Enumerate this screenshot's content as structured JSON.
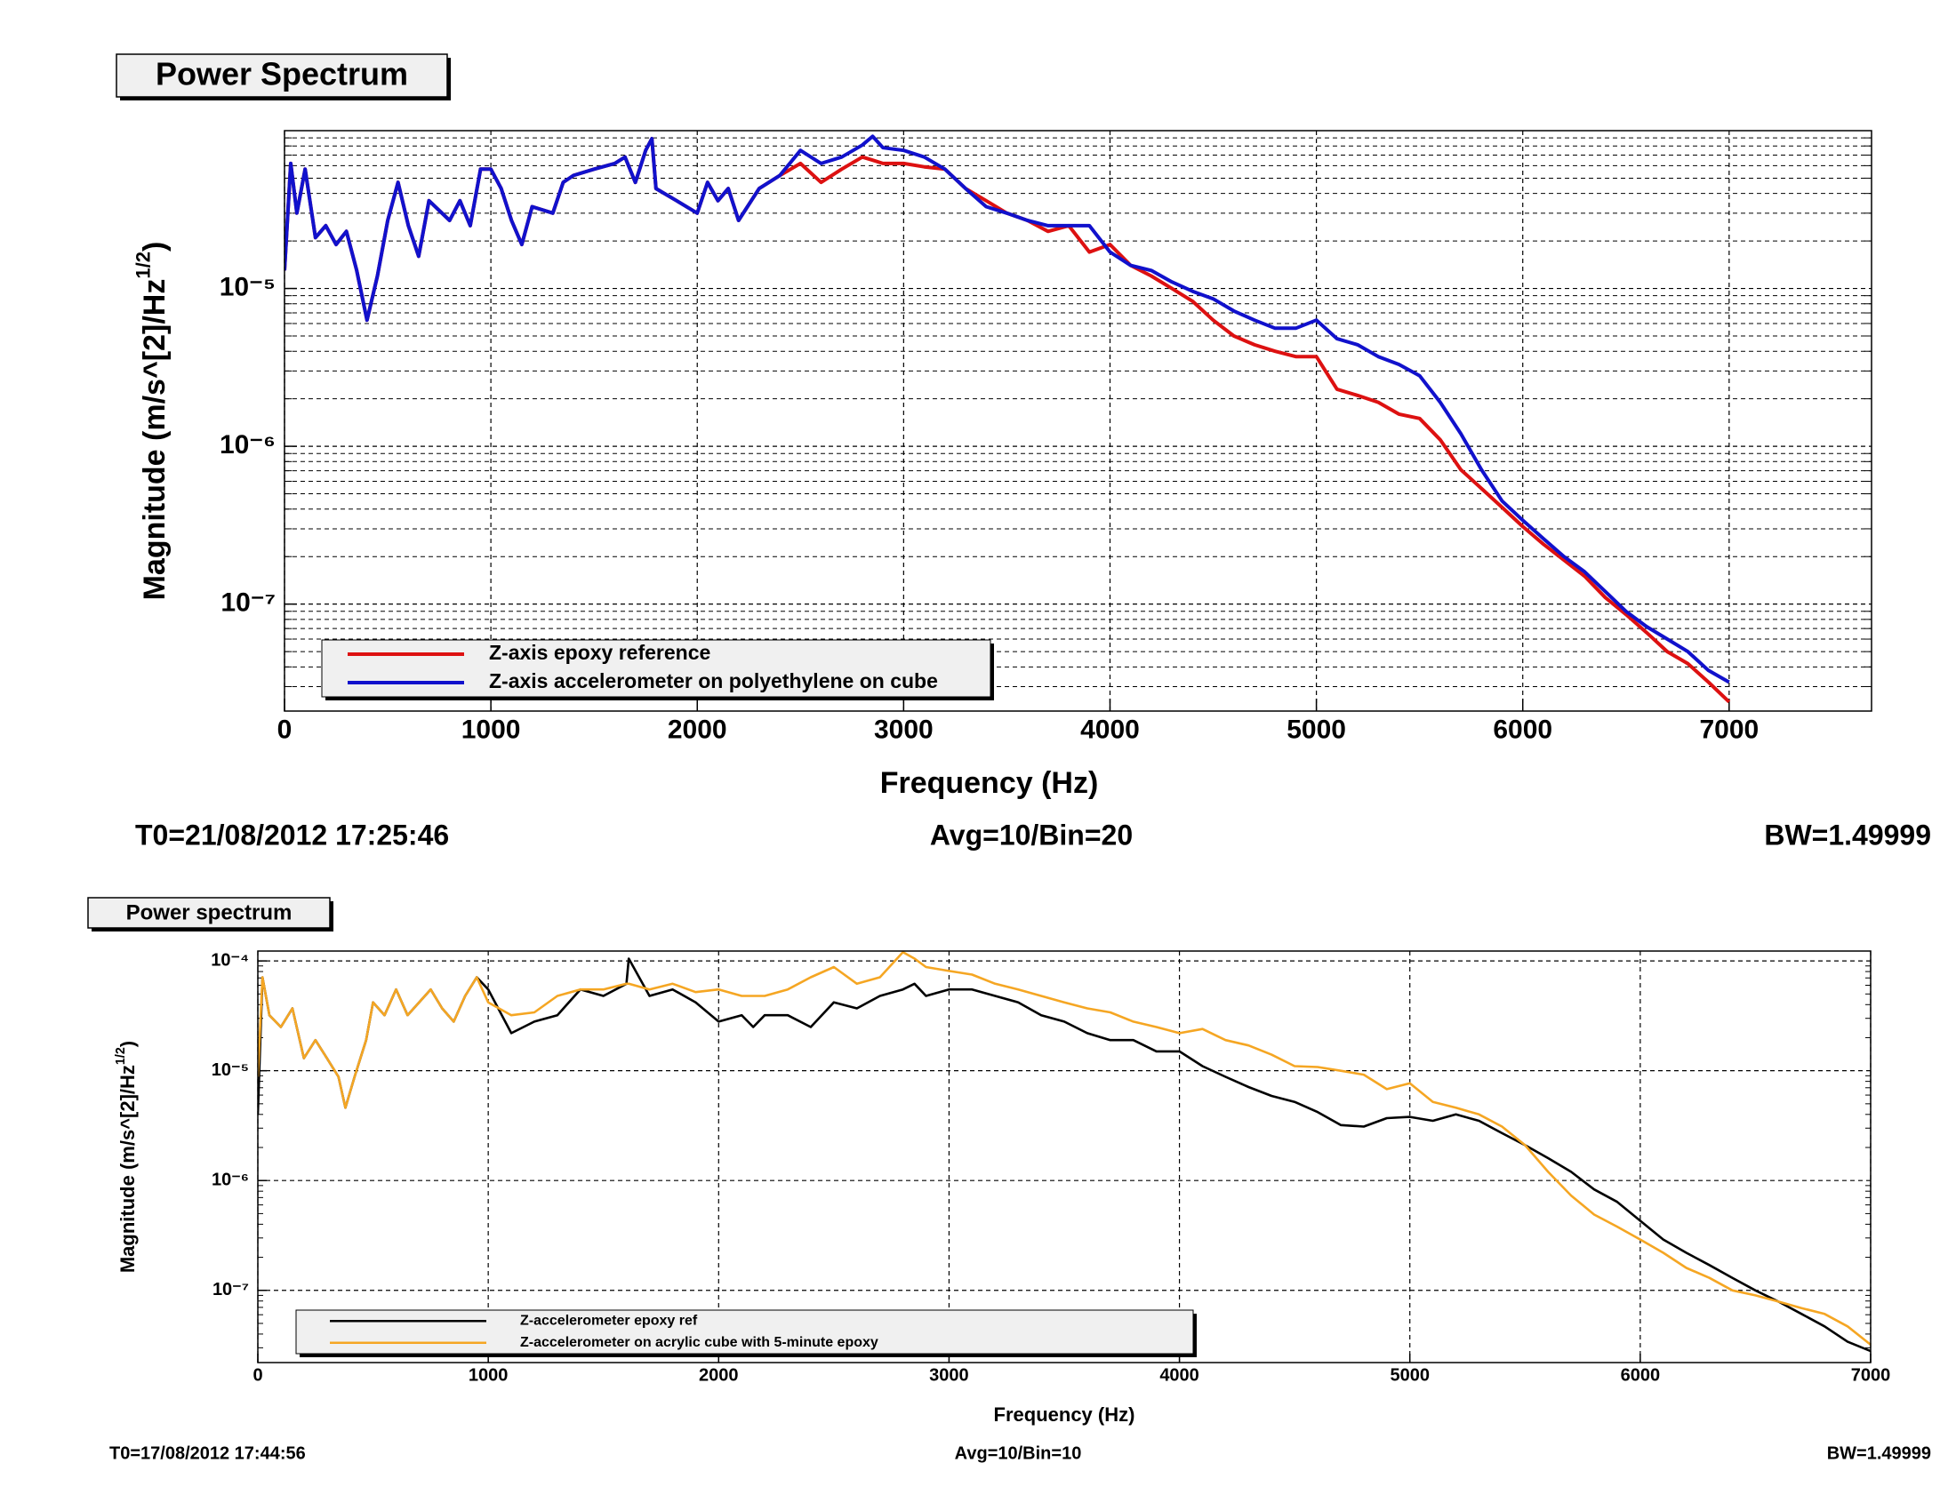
{
  "chart_data": [
    {
      "type": "line",
      "title": "Power Spectrum",
      "xlabel": "Frequency (Hz)",
      "ylabel": "Magnitude (m/s^[2]/Hz",
      "ylabel_sup": "1/2",
      "ylabel_end": ")",
      "log_y": true,
      "grid": true,
      "minor_grid": true,
      "legend": "bottom-left",
      "xlim": [
        0,
        7690
      ],
      "xticks": [
        0,
        1000,
        2000,
        3000,
        4000,
        5000,
        6000,
        7000
      ],
      "ylim": [
        2.1e-08,
        0.0001
      ],
      "yticks": [
        {
          "value": 1e-07,
          "label": "10⁻⁷"
        },
        {
          "value": 1e-06,
          "label": "10⁻⁶"
        },
        {
          "value": 1e-05,
          "label": "10⁻⁵"
        }
      ],
      "x": [
        0,
        30,
        60,
        100,
        150,
        200,
        250,
        300,
        350,
        400,
        450,
        500,
        550,
        600,
        650,
        700,
        800,
        850,
        900,
        950,
        1000,
        1050,
        1100,
        1150,
        1200,
        1300,
        1350,
        1400,
        1500,
        1600,
        1650,
        1700,
        1750,
        1780,
        1800,
        1900,
        2000,
        2050,
        2100,
        2150,
        2200,
        2300,
        2400,
        2500,
        2600,
        2700,
        2800,
        2850,
        2900,
        3000,
        3100,
        3200,
        3300,
        3400,
        3500,
        3600,
        3700,
        3800,
        3900,
        4000,
        4100,
        4200,
        4300,
        4400,
        4500,
        4600,
        4700,
        4800,
        4900,
        5000,
        5100,
        5200,
        5300,
        5400,
        5500,
        5600,
        5700,
        5800,
        5900,
        6000,
        6100,
        6200,
        6300,
        6400,
        6500,
        6600,
        6700,
        6800,
        6900,
        7000
      ],
      "series": [
        {
          "name": "Z-axis epoxy reference",
          "color": "#dd1111",
          "values": [
            1.3e-05,
            6.2e-05,
            3e-05,
            5.7e-05,
            2.1e-05,
            2.5e-05,
            1.9e-05,
            2.3e-05,
            1.3e-05,
            6.3e-06,
            1.2e-05,
            2.7e-05,
            4.7e-05,
            2.5e-05,
            1.6e-05,
            3.6e-05,
            2.7e-05,
            3.6e-05,
            2.5e-05,
            5.7e-05,
            5.7e-05,
            4.3e-05,
            2.7e-05,
            1.9e-05,
            3.3e-05,
            3e-05,
            4.7e-05,
            5.2e-05,
            5.7e-05,
            6.2e-05,
            6.8e-05,
            4.7e-05,
            7.5e-05,
            8.9e-05,
            4.3e-05,
            3.6e-05,
            3e-05,
            4.7e-05,
            3.6e-05,
            4.3e-05,
            2.7e-05,
            4.3e-05,
            5.2e-05,
            6.2e-05,
            4.7e-05,
            5.7e-05,
            6.8e-05,
            6.5e-05,
            6.2e-05,
            6.2e-05,
            5.9e-05,
            5.7e-05,
            4.3e-05,
            3.6e-05,
            3e-05,
            2.7e-05,
            2.3e-05,
            2.5e-05,
            1.7e-05,
            1.9e-05,
            1.4e-05,
            1.2e-05,
            1e-05,
            8.3e-06,
            6.3e-06,
            5e-06,
            4.4e-06,
            4e-06,
            3.7e-06,
            3.7e-06,
            2.3e-06,
            2.1e-06,
            1.9e-06,
            1.6e-06,
            1.5e-06,
            1.1e-06,
            7.1e-07,
            5.4e-07,
            4.1e-07,
            3.1e-07,
            2.4e-07,
            1.9e-07,
            1.5e-07,
            1.1e-07,
            8.6e-08,
            6.6e-08,
            5e-08,
            4.2e-08,
            3.2e-08,
            2.4e-08
          ]
        },
        {
          "name": "Z-axis accelerometer on polyethylene on cube",
          "color": "#1111cc",
          "values": [
            1.3e-05,
            6.2e-05,
            3e-05,
            5.7e-05,
            2.1e-05,
            2.5e-05,
            1.9e-05,
            2.3e-05,
            1.3e-05,
            6.3e-06,
            1.2e-05,
            2.7e-05,
            4.7e-05,
            2.5e-05,
            1.6e-05,
            3.6e-05,
            2.7e-05,
            3.6e-05,
            2.5e-05,
            5.7e-05,
            5.7e-05,
            4.3e-05,
            2.7e-05,
            1.9e-05,
            3.3e-05,
            3e-05,
            4.7e-05,
            5.2e-05,
            5.7e-05,
            6.2e-05,
            6.8e-05,
            4.7e-05,
            7.5e-05,
            8.9e-05,
            4.3e-05,
            3.6e-05,
            3e-05,
            4.7e-05,
            3.6e-05,
            4.3e-05,
            2.7e-05,
            4.3e-05,
            5.2e-05,
            7.5e-05,
            6.2e-05,
            6.8e-05,
            8.1e-05,
            9.2e-05,
            7.8e-05,
            7.5e-05,
            6.8e-05,
            5.7e-05,
            4.3e-05,
            3.3e-05,
            3e-05,
            2.7e-05,
            2.5e-05,
            2.5e-05,
            2.5e-05,
            1.7e-05,
            1.4e-05,
            1.3e-05,
            1.1e-05,
            9.6e-06,
            8.6e-06,
            7.2e-06,
            6.3e-06,
            5.6e-06,
            5.6e-06,
            6.3e-06,
            4.8e-06,
            4.4e-06,
            3.7e-06,
            3.3e-06,
            2.8e-06,
            1.9e-06,
            1.2e-06,
            7.1e-07,
            4.5e-07,
            3.4e-07,
            2.6e-07,
            2e-07,
            1.6e-07,
            1.2e-07,
            9e-08,
            7.2e-08,
            6e-08,
            5e-08,
            3.8e-08,
            3.2e-08
          ]
        }
      ],
      "annotations": [
        "T0=21/08/2012 17:25:46",
        "Avg=10/Bin=20",
        "BW=1.49999"
      ]
    },
    {
      "type": "line",
      "title": "Power spectrum",
      "xlabel": "Frequency (Hz)",
      "ylabel": "Magnitude (m/s^[2]/Hz",
      "ylabel_sup": "1/2",
      "ylabel_end": ")",
      "log_y": true,
      "grid": true,
      "minor_grid": false,
      "legend": "bottom-left",
      "xlim": [
        0,
        7000
      ],
      "xticks": [
        0,
        1000,
        2000,
        3000,
        4000,
        5000,
        6000,
        7000
      ],
      "ylim": [
        2.2e-08,
        0.000123
      ],
      "yticks": [
        {
          "value": 1e-07,
          "label": "10⁻⁷"
        },
        {
          "value": 1e-06,
          "label": "10⁻⁶"
        },
        {
          "value": 1e-05,
          "label": "10⁻⁵"
        },
        {
          "value": 0.0001,
          "label": "10⁻⁴"
        }
      ],
      "x": [
        0,
        20,
        50,
        100,
        150,
        200,
        250,
        300,
        350,
        380,
        420,
        470,
        500,
        550,
        600,
        650,
        700,
        750,
        800,
        850,
        900,
        950,
        1000,
        1100,
        1200,
        1300,
        1400,
        1500,
        1600,
        1610,
        1700,
        1800,
        1900,
        2000,
        2100,
        2150,
        2200,
        2300,
        2400,
        2500,
        2600,
        2700,
        2800,
        2850,
        2900,
        3000,
        3100,
        3200,
        3300,
        3400,
        3500,
        3600,
        3700,
        3800,
        3900,
        4000,
        4100,
        4200,
        4300,
        4400,
        4500,
        4600,
        4700,
        4800,
        4900,
        5000,
        5100,
        5200,
        5300,
        5400,
        5500,
        5600,
        5700,
        5800,
        5900,
        6000,
        6100,
        6200,
        6300,
        6400,
        6500,
        6600,
        6700,
        6800,
        6900,
        7000
      ],
      "series": [
        {
          "name": "Z-accelerometer epoxy ref",
          "color": "#000000",
          "values": [
            4e-06,
            7.1e-05,
            3.2e-05,
            2.5e-05,
            3.7e-05,
            1.3e-05,
            1.9e-05,
            1.3e-05,
            8.8e-06,
            4.6e-06,
            8.8e-06,
            1.9e-05,
            4.2e-05,
            3.2e-05,
            5.5e-05,
            3.2e-05,
            4.2e-05,
            5.5e-05,
            3.7e-05,
            2.8e-05,
            4.8e-05,
            7.1e-05,
            5.5e-05,
            2.2e-05,
            2.8e-05,
            3.2e-05,
            5.5e-05,
            4.8e-05,
            6.2e-05,
            0.000105,
            4.8e-05,
            5.5e-05,
            4.2e-05,
            2.8e-05,
            3.2e-05,
            2.5e-05,
            3.2e-05,
            3.2e-05,
            2.5e-05,
            4.2e-05,
            3.7e-05,
            4.8e-05,
            5.5e-05,
            6.2e-05,
            4.8e-05,
            5.5e-05,
            5.5e-05,
            4.8e-05,
            4.2e-05,
            3.2e-05,
            2.8e-05,
            2.2e-05,
            1.9e-05,
            1.9e-05,
            1.5e-05,
            1.5e-05,
            1.1e-05,
            8.8e-06,
            7.1e-06,
            5.9e-06,
            5.2e-06,
            4.2e-06,
            3.2e-06,
            3.1e-06,
            3.7e-06,
            3.8e-06,
            3.5e-06,
            4e-06,
            3.5e-06,
            2.7e-06,
            2.1e-06,
            1.6e-06,
            1.2e-06,
            8.3e-07,
            6.4e-07,
            4.3e-07,
            2.9e-07,
            2.2e-07,
            1.7e-07,
            1.3e-07,
            1e-07,
            7.9e-08,
            6.1e-08,
            4.7e-08,
            3.4e-08,
            2.8e-08
          ]
        },
        {
          "name": "Z-accelerometer on acrylic cube with 5-minute epoxy",
          "color": "#f5a623",
          "values": [
            8.8e-06,
            7.1e-05,
            3.2e-05,
            2.5e-05,
            3.7e-05,
            1.3e-05,
            1.9e-05,
            1.3e-05,
            8.8e-06,
            4.6e-06,
            8.8e-06,
            1.9e-05,
            4.2e-05,
            3.2e-05,
            5.5e-05,
            3.2e-05,
            4.2e-05,
            5.5e-05,
            3.7e-05,
            2.8e-05,
            4.8e-05,
            7.1e-05,
            4.2e-05,
            3.2e-05,
            3.4e-05,
            4.8e-05,
            5.5e-05,
            5.5e-05,
            6.2e-05,
            6.2e-05,
            5.5e-05,
            6.2e-05,
            5.2e-05,
            5.5e-05,
            4.8e-05,
            4.8e-05,
            4.8e-05,
            5.5e-05,
            7.1e-05,
            8.8e-05,
            6.2e-05,
            7.1e-05,
            0.00012,
            0.000105,
            8.8e-05,
            8.1e-05,
            7.5e-05,
            6.2e-05,
            5.5e-05,
            4.8e-05,
            4.2e-05,
            3.7e-05,
            3.4e-05,
            2.8e-05,
            2.5e-05,
            2.2e-05,
            2.4e-05,
            1.9e-05,
            1.7e-05,
            1.4e-05,
            1.1e-05,
            1.08e-05,
            1e-05,
            9.2e-06,
            6.8e-06,
            7.7e-06,
            5.2e-06,
            4.6e-06,
            4e-06,
            3.1e-06,
            2.1e-06,
            1.2e-06,
            7.3e-07,
            4.9e-07,
            3.8e-07,
            2.9e-07,
            2.2e-07,
            1.6e-07,
            1.3e-07,
            1e-07,
            9e-08,
            7.9e-08,
            6.9e-08,
            6.1e-08,
            4.7e-08,
            3.2e-08
          ]
        }
      ],
      "annotations": [
        "T0=17/08/2012 17:44:56",
        "Avg=10/Bin=10",
        "BW=1.49999"
      ]
    }
  ]
}
